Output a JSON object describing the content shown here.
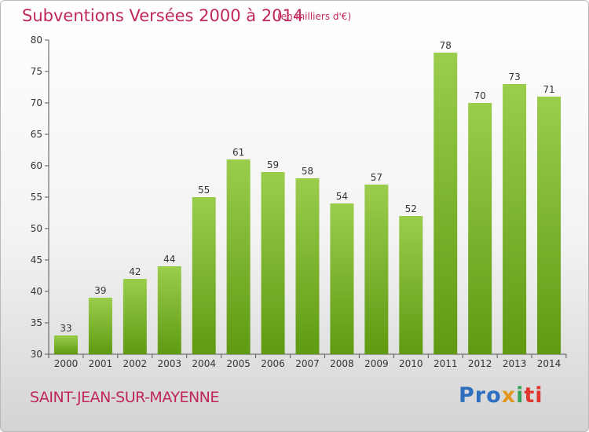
{
  "title": "Subventions Versées 2000 à 2014",
  "subtitle": "(en milliers d'€)",
  "commune": "SAINT-JEAN-SUR-MAYENNE",
  "logo": {
    "p1": "Pro",
    "p2": "x",
    "p3": "i",
    "p4": "ti"
  },
  "colors": {
    "accent": "#c0285a",
    "bar_top": "#9acd4c",
    "bar_bottom": "#5f9a12"
  },
  "chart_data": {
    "type": "bar",
    "title": "Subventions Versées 2000 à 2014",
    "subtitle": "(en milliers d'€)",
    "categories": [
      "2000",
      "2001",
      "2002",
      "2003",
      "2004",
      "2005",
      "2006",
      "2007",
      "2008",
      "2009",
      "2010",
      "2011",
      "2012",
      "2013",
      "2014"
    ],
    "values": [
      33,
      39,
      42,
      44,
      55,
      61,
      59,
      58,
      54,
      57,
      52,
      78,
      70,
      73,
      71
    ],
    "ylim": [
      30,
      80
    ],
    "yticks": [
      30,
      35,
      40,
      45,
      50,
      55,
      60,
      65,
      70,
      75,
      80
    ],
    "grid": false,
    "legend": "none"
  }
}
